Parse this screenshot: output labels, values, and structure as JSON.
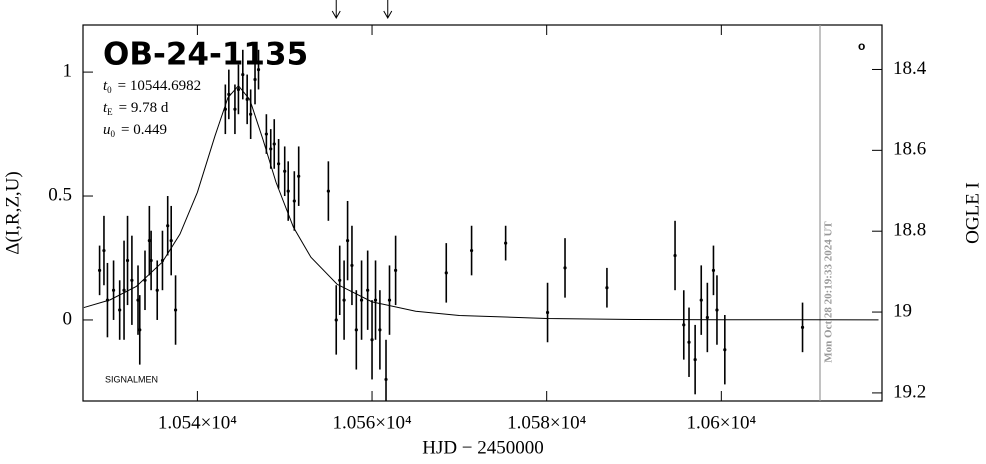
{
  "chart_data": {
    "type": "scatter",
    "title": "OB-24-1135",
    "parameters": [
      {
        "symbol": "t",
        "sub": "0",
        "text": "= 10544.6982"
      },
      {
        "symbol": "t",
        "sub": "E",
        "text": "= 9.78 d"
      },
      {
        "symbol": "u",
        "sub": "0",
        "text": "= 0.449"
      }
    ],
    "signature": "SIGNALMEN",
    "corner_mark": "o",
    "x_label": "HJD − 2450000",
    "y_label": "Δ(I,R,Z,U)",
    "y2_label": "OGLE I",
    "xlim": [
      10526.9,
      10618.4
    ],
    "xticks": [
      {
        "value": 10540,
        "label": "1.054×10⁴"
      },
      {
        "value": 10560,
        "label": "1.056×10⁴"
      },
      {
        "value": 10580,
        "label": "1.058×10⁴"
      },
      {
        "value": 10600,
        "label": "1.06×10⁴"
      }
    ],
    "ylim": [
      -0.327,
      1.19
    ],
    "yticks": [
      0,
      0.5,
      1
    ],
    "y2lim": [
      18.29,
      19.22
    ],
    "y2ticks": [
      18.4,
      18.6,
      18.8,
      19,
      19.2
    ],
    "vline": 10611.3,
    "vline_label": "Mon Oct 28 20:19:33 2024 UT",
    "arrows": [
      10555.9,
      10561.8
    ],
    "points": {
      "color": "#000000",
      "x": [
        10528.8,
        10529.3,
        10529.7,
        10530.4,
        10531.1,
        10531.6,
        10532.0,
        10532.5,
        10533.2,
        10533.4,
        10534.0,
        10534.5,
        10534.7,
        10535.4,
        10536.0,
        10536.6,
        10537.0,
        10537.5,
        10543.2,
        10543.6,
        10544.3,
        10544.7,
        10545.2,
        10545.7,
        10546.1,
        10546.6,
        10547.0,
        10547.9,
        10548.4,
        10548.8,
        10549.3,
        10550.0,
        10550.4,
        10551.1,
        10551.6,
        10555.0,
        10555.9,
        10556.3,
        10556.8,
        10557.2,
        10557.7,
        10558.2,
        10558.8,
        10559.5,
        10560.0,
        10560.4,
        10560.9,
        10561.6,
        10562.0,
        10562.7,
        10568.5,
        10571.4,
        10575.3,
        10580.1,
        10582.1,
        10586.9,
        10594.7,
        10595.7,
        10596.3,
        10597.0,
        10597.7,
        10598.4,
        10599.1,
        10599.5,
        10600.4,
        10609.3
      ],
      "values": [
        0.2,
        0.28,
        0.08,
        0.12,
        0.04,
        0.12,
        0.24,
        0.16,
        0.08,
        -0.04,
        0.16,
        0.32,
        0.24,
        0.12,
        0.24,
        0.38,
        0.32,
        0.04,
        0.85,
        0.91,
        0.85,
        0.93,
        0.99,
        0.89,
        0.83,
        0.97,
        1.01,
        0.75,
        0.69,
        0.71,
        0.63,
        0.6,
        0.52,
        0.48,
        0.58,
        0.52,
        0.0,
        0.16,
        0.08,
        0.32,
        0.22,
        -0.04,
        0.08,
        0.12,
        -0.08,
        0.08,
        -0.04,
        -0.24,
        0.08,
        0.2,
        0.19,
        0.28,
        0.31,
        0.03,
        0.21,
        0.13,
        0.26,
        -0.02,
        -0.09,
        -0.16,
        0.08,
        0.01,
        0.2,
        0.04,
        -0.12,
        -0.03
      ],
      "errors": [
        0.1,
        0.14,
        0.15,
        0.12,
        0.12,
        0.2,
        0.18,
        0.18,
        0.14,
        0.14,
        0.12,
        0.14,
        0.12,
        0.12,
        0.12,
        0.12,
        0.14,
        0.14,
        0.1,
        0.1,
        0.1,
        0.1,
        0.1,
        0.1,
        0.1,
        0.1,
        0.08,
        0.08,
        0.08,
        0.1,
        0.1,
        0.1,
        0.12,
        0.12,
        0.12,
        0.12,
        0.14,
        0.14,
        0.16,
        0.16,
        0.16,
        0.16,
        0.16,
        0.16,
        0.16,
        0.16,
        0.16,
        0.16,
        0.14,
        0.14,
        0.12,
        0.1,
        0.07,
        0.12,
        0.12,
        0.08,
        0.14,
        0.14,
        0.14,
        0.14,
        0.14,
        0.14,
        0.1,
        0.14,
        0.14,
        0.1
      ]
    },
    "model": {
      "color": "#000000",
      "x": [
        10527,
        10530,
        10533,
        10536,
        10538,
        10540,
        10542,
        10543.5,
        10544.7,
        10546,
        10547.5,
        10549,
        10551,
        10553,
        10556,
        10560,
        10565,
        10570,
        10580,
        10590,
        10600,
        10610,
        10618
      ],
      "values": [
        0.05,
        0.081,
        0.135,
        0.234,
        0.346,
        0.515,
        0.741,
        0.897,
        0.945,
        0.889,
        0.729,
        0.556,
        0.374,
        0.253,
        0.144,
        0.073,
        0.035,
        0.018,
        0.006,
        0.002,
        0.001,
        0.001,
        0.0004
      ]
    }
  }
}
